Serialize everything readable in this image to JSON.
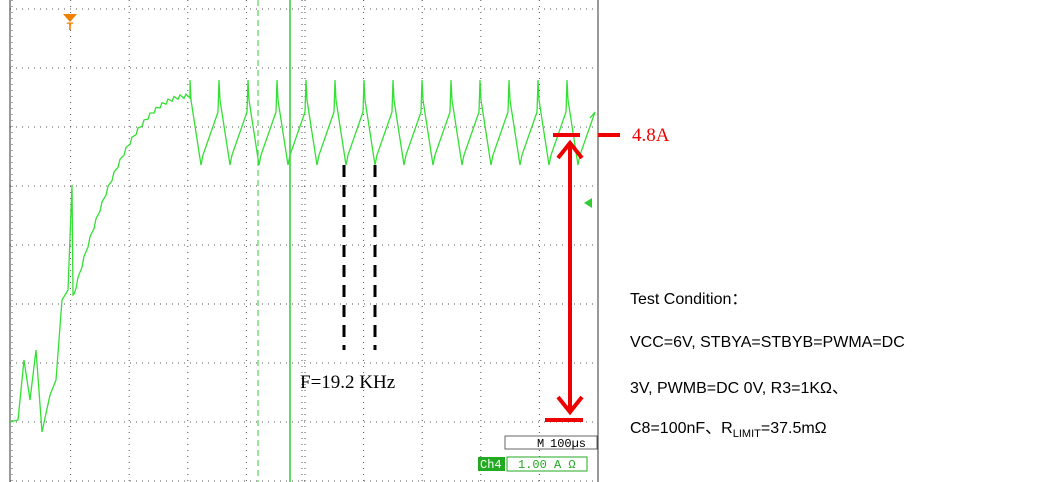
{
  "scope": {
    "trigger_marker": "T",
    "time_base": {
      "label": "M",
      "value": "100µs"
    },
    "channel": {
      "label": "Ch4",
      "scale": "1.00 A Ω"
    }
  },
  "annotations": {
    "current": "4.8A",
    "frequency": "F=19.2 KHz"
  },
  "test_condition": {
    "title": "Test Condition：",
    "lines": [
      "VCC=6V, STBYA=STBYB=PWMA=DC",
      "3V, PWMB=DC 0V, R3=1KΩ、"
    ],
    "last_line": {
      "before": "C8=100nF、R",
      "subscript": "LIMIT",
      "after": "=37.5mΩ"
    }
  }
}
